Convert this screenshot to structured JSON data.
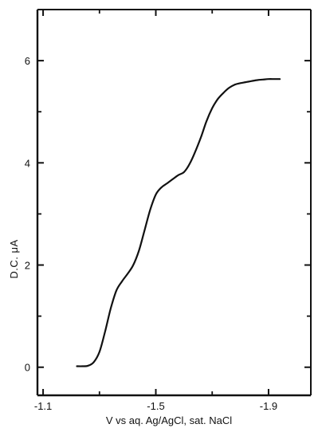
{
  "chart_data": {
    "type": "line",
    "xlabel": "V vs aq. Ag/AgCl, sat. NaCl",
    "ylabel": "D.C.  μA",
    "x_ticks": [
      -1.1,
      -1.5,
      -1.9
    ],
    "x_tick_labels": [
      "-1.1",
      "-1.5",
      "-1.9"
    ],
    "y_ticks": [
      0,
      2,
      4,
      6
    ],
    "y_tick_labels": [
      "0",
      "2",
      "4",
      "6"
    ],
    "xlim": [
      -1.08,
      -2.05
    ],
    "ylim": [
      -0.55,
      7.0
    ],
    "grid": false,
    "series": [
      {
        "x": [
          -1.22,
          -1.24,
          -1.26,
          -1.28,
          -1.3,
          -1.32,
          -1.34,
          -1.36,
          -1.38,
          -1.4,
          -1.42,
          -1.44,
          -1.46,
          -1.48,
          -1.5,
          -1.52,
          -1.54,
          -1.56,
          -1.58,
          -1.6,
          -1.62,
          -1.64,
          -1.66,
          -1.68,
          -1.7,
          -1.72,
          -1.74,
          -1.76,
          -1.78,
          -1.8,
          -1.82,
          -1.84,
          -1.86,
          -1.88,
          -1.9,
          -1.92,
          -1.94
        ],
        "y": [
          0.02,
          0.02,
          0.03,
          0.1,
          0.3,
          0.7,
          1.15,
          1.5,
          1.68,
          1.83,
          2.0,
          2.28,
          2.68,
          3.08,
          3.38,
          3.52,
          3.6,
          3.68,
          3.76,
          3.82,
          3.98,
          4.22,
          4.5,
          4.82,
          5.07,
          5.25,
          5.37,
          5.47,
          5.53,
          5.56,
          5.58,
          5.6,
          5.62,
          5.63,
          5.64,
          5.64,
          5.64
        ]
      }
    ]
  }
}
